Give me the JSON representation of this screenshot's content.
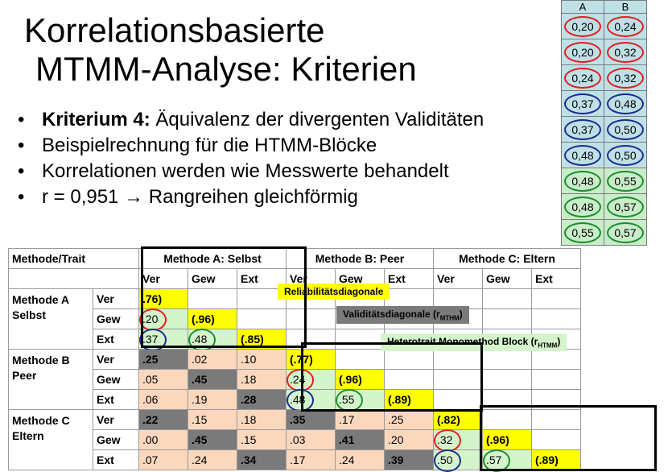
{
  "title": {
    "line1": "Korrelationsbasierte",
    "line2": "MTMM-Analyse: Kriterien"
  },
  "bullets": [
    {
      "bold": "Kriterium 4:",
      "text": " Äquivalenz der divergenten Validitäten"
    },
    {
      "bold": "",
      "text": "Beispielrechnung für die HTMM-Blöcke"
    },
    {
      "bold": "",
      "text": "Korrelationen werden wie Messwerte behandelt"
    },
    {
      "bold": "",
      "text": "r = 0,951 → Rangreihen gleichförmig"
    }
  ],
  "side_table": {
    "headers": [
      "A",
      "B"
    ],
    "rows": [
      {
        "a": "0,20",
        "b": "0,24",
        "color": "red"
      },
      {
        "a": "0,20",
        "b": "0,32",
        "color": "red"
      },
      {
        "a": "0,24",
        "b": "0,32",
        "color": "red"
      },
      {
        "a": "0,37",
        "b": "0,48",
        "color": "blue"
      },
      {
        "a": "0,37",
        "b": "0,50",
        "color": "blue"
      },
      {
        "a": "0,48",
        "b": "0,50",
        "color": "blue"
      },
      {
        "a": "0,48",
        "b": "0,55",
        "color": "green"
      },
      {
        "a": "0,48",
        "b": "0,57",
        "color": "green"
      },
      {
        "a": "0,55",
        "b": "0,57",
        "color": "green"
      }
    ]
  },
  "main_table": {
    "corner": "Methode/Trait",
    "methods_header": [
      "Methode A: Selbst",
      "Methode B: Peer",
      "Methode C: Eltern"
    ],
    "traits_header": [
      "Ver",
      "Gew",
      "Ext",
      "Ver",
      "Gew",
      "Ext",
      "Ver",
      "Gew",
      "Ext"
    ],
    "blocks": [
      {
        "name1": "Methode A",
        "name2": "Selbst",
        "rows": [
          {
            "trait": "Ver",
            "cells": [
              ".76)",
              "",
              "",
              "",
              "",
              "",
              "",
              "",
              ""
            ]
          },
          {
            "trait": "Gew",
            "cells": [
              ".20",
              "(.96)",
              "",
              "",
              "",
              "",
              "",
              "",
              ""
            ]
          },
          {
            "trait": "Ext",
            "cells": [
              ".37",
              ".48",
              "(.85)",
              "",
              "",
              "",
              "",
              "",
              ""
            ]
          }
        ]
      },
      {
        "name1": "Methode B",
        "name2": "Peer",
        "rows": [
          {
            "trait": "Ver",
            "cells": [
              ".25",
              ".02",
              ".10",
              "(.77)",
              "",
              "",
              "",
              "",
              ""
            ]
          },
          {
            "trait": "Gew",
            "cells": [
              ".05",
              ".45",
              ".18",
              ".24",
              "(.96)",
              "",
              "",
              "",
              ""
            ]
          },
          {
            "trait": "Ext",
            "cells": [
              ".06",
              ".19",
              ".28",
              ".48",
              ".55",
              "(.89)",
              "",
              "",
              ""
            ]
          }
        ]
      },
      {
        "name1": "Methode C",
        "name2": "Eltern",
        "rows": [
          {
            "trait": "Ver",
            "cells": [
              ".22",
              ".15",
              ".18",
              ".35",
              ".17",
              ".25",
              "(.82)",
              "",
              ""
            ]
          },
          {
            "trait": "Gew",
            "cells": [
              ".00",
              ".45",
              ".15",
              ".03",
              ".41",
              ".20",
              ".32",
              "(.96)",
              ""
            ]
          },
          {
            "trait": "Ext",
            "cells": [
              ".07",
              ".24",
              ".34",
              ".17",
              ".24",
              ".39",
              ".50",
              ".57",
              "(.89)"
            ]
          }
        ]
      }
    ]
  },
  "overlays": {
    "reliability": "Reliabilitätsdiagonale",
    "validity_main": "Validitätsdiagonale (r",
    "validity_sub": "MTHM",
    "hetero_main": "Heterotrait Monomethod Block (r",
    "hetero_sub": "HTMM"
  }
}
